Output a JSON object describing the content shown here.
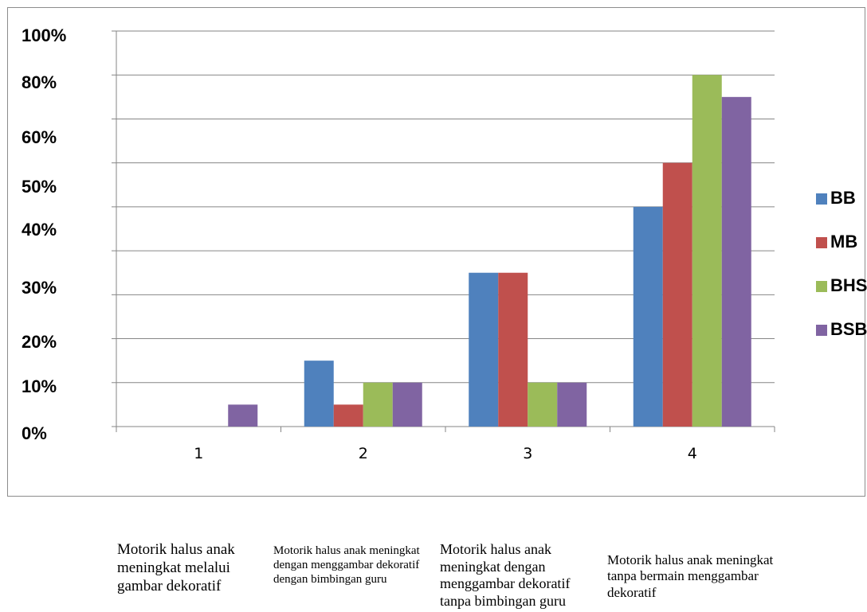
{
  "chart_data": {
    "type": "bar",
    "title": "",
    "xlabel": "",
    "ylabel": "",
    "categories": [
      "1",
      "2",
      "3",
      "4"
    ],
    "y_tick_labels": [
      "0%",
      "10%",
      "20%",
      "30%",
      "40%",
      "50%",
      "60%",
      "80%",
      "100%"
    ],
    "ylim": [
      0,
      18
    ],
    "grid": true,
    "legend_position": "right",
    "series": [
      {
        "name": "BB",
        "color": "#4f81bd",
        "values": [
          0,
          3,
          7,
          10
        ]
      },
      {
        "name": "MB",
        "color": "#c0504d",
        "values": [
          0,
          1,
          7,
          12
        ]
      },
      {
        "name": "BHS",
        "color": "#9bbb59",
        "values": [
          0,
          2,
          2,
          16
        ]
      },
      {
        "name": "BSB",
        "color": "#8064a2",
        "values": [
          1,
          2,
          2,
          15
        ]
      }
    ]
  },
  "captions": [
    "Motorik halus anak meningkat melalui gambar dekoratif",
    "Motorik halus anak meningkat dengan menggambar dekoratif dengan bimbingan guru",
    "Motorik halus anak meningkat dengan menggambar dekoratif tanpa bimbingan guru",
    "Motorik halus anak meningkat tanpa bermain menggambar dekoratif"
  ]
}
